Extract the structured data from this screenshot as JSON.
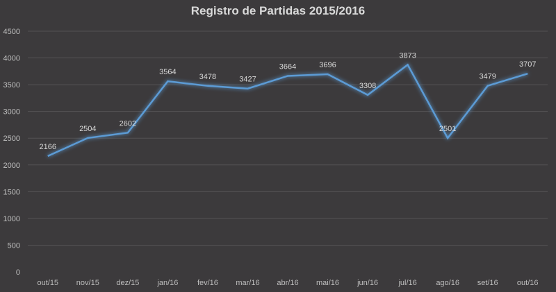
{
  "chart_data": {
    "type": "line",
    "title": "Registro de Partidas 2015/2016",
    "xlabel": "",
    "ylabel": "",
    "ylim": [
      0,
      4500
    ],
    "yticks": [
      0,
      500,
      1000,
      1500,
      2000,
      2500,
      3000,
      3500,
      4000,
      4500
    ],
    "categories": [
      "out/15",
      "nov/15",
      "dez/15",
      "jan/16",
      "fev/16",
      "mar/16",
      "abr/16",
      "mai/16",
      "jun/16",
      "jul/16",
      "ago/16",
      "set/16",
      "out/16"
    ],
    "series": [
      {
        "name": "Partidas",
        "values": [
          2166,
          2504,
          2602,
          3564,
          3478,
          3427,
          3664,
          3696,
          3308,
          3873,
          2501,
          3479,
          3707
        ],
        "color": "#5b9bd5"
      }
    ],
    "grid": true,
    "legend": "none",
    "data_labels": true
  },
  "colors": {
    "background": "#3c3a3c",
    "gridline": "#555355",
    "line": "#5b9bd5",
    "text": "#bfbfbf",
    "title": "#d9d9d9"
  }
}
